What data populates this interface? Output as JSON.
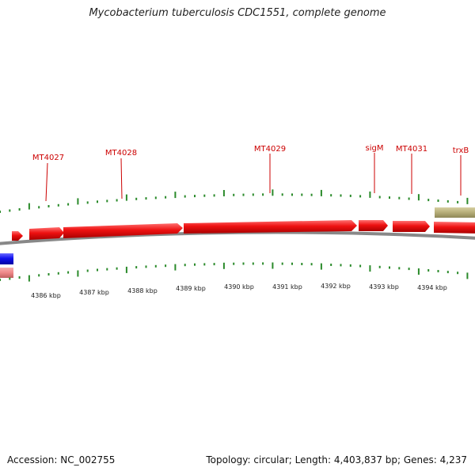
{
  "title": "Mycobacterium tuberculosis CDC1551, complete genome",
  "footer": {
    "accession": "Accession: NC_002755",
    "summary": "Topology: circular; Length: 4,403,837 bp; Genes: 4,237"
  },
  "colors": {
    "forward_gene": "#ee1111",
    "forward_gene_light": "#ff7070",
    "reverse_gene": "#1111ee",
    "reverse_gene_pale": "#ee8888",
    "feature_olive": "#b5ad78",
    "backbone": "#888888",
    "ticks": "#2a8a2a",
    "gene_label": "#cc0000"
  },
  "gene_labels": [
    "MT4027",
    "MT4028",
    "MT4029",
    "sigM",
    "MT4031",
    "trxB"
  ],
  "scale_labels": [
    "4386 kbp",
    "4387 kbp",
    "4388 kbp",
    "4389 kbp",
    "4390 kbp",
    "4391 kbp",
    "4392 kbp",
    "4393 kbp",
    "4394 kbp"
  ]
}
